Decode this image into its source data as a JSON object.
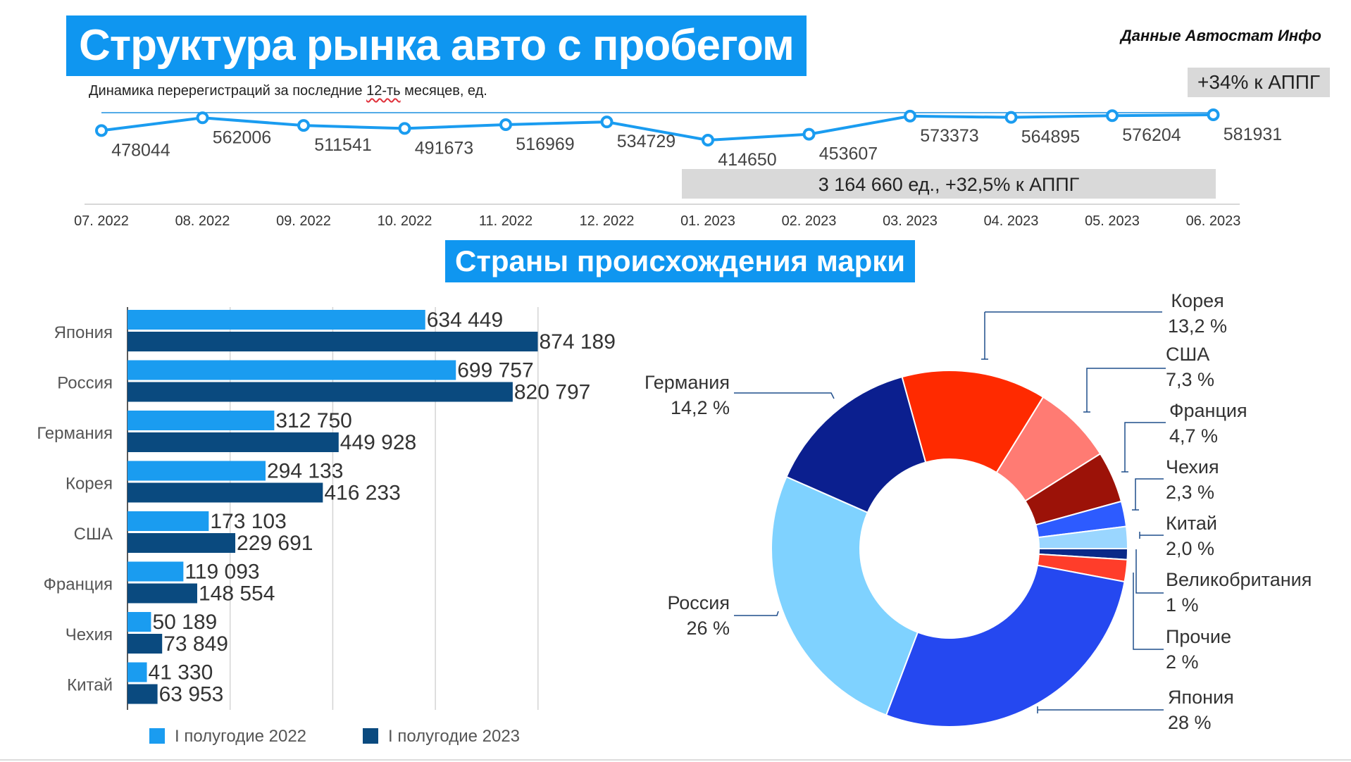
{
  "header": {
    "title": "Структура рынка авто с пробегом",
    "source": "Данные Автостат Инфо",
    "yoy_badge": "+34% к АППГ",
    "subtitle_pre": "Динамика перерегистраций за последние ",
    "subtitle_underlined": "12-ть",
    "subtitle_post": " месяцев, ед."
  },
  "section_title": "Страны происхождения марки",
  "colors": {
    "brand_blue": "#0f96f0",
    "bar_2022": "#1a9cf0",
    "bar_2023": "#0a4a7f",
    "badge_grey": "#d9d9d9"
  },
  "chart_data": [
    {
      "type": "line",
      "x": [
        "07. 2022",
        "08. 2022",
        "09. 2022",
        "10. 2022",
        "11. 2022",
        "12. 2022",
        "01. 2023",
        "02. 2023",
        "03. 2023",
        "04. 2023",
        "05. 2023",
        "06. 2023"
      ],
      "series": [
        {
          "values": [
            478044,
            562006,
            511541,
            491673,
            516969,
            534729,
            414650,
            453607,
            573373,
            564895,
            576204,
            581931
          ]
        }
      ],
      "annotation": "3 164 660 ед., +32,5% к АППГ",
      "grid": false
    },
    {
      "type": "bar",
      "orientation": "horizontal",
      "categories": [
        "Япония",
        "Россия",
        "Германия",
        "Корея",
        "США",
        "Франция",
        "Чехия",
        "Китай"
      ],
      "series": [
        {
          "name": "I полугодие 2022",
          "values": [
            634449,
            699757,
            312750,
            294133,
            173103,
            119093,
            50189,
            41330
          ],
          "labels": [
            "634 449",
            "699 757",
            "312 750",
            "294 133",
            "173 103",
            "119 093",
            "50 189",
            "41 330"
          ]
        },
        {
          "name": "I полугодие 2023",
          "values": [
            874189,
            820797,
            449928,
            416233,
            229691,
            148554,
            73849,
            63953
          ],
          "labels": [
            "874 189",
            "820 797",
            "449 928",
            "416 233",
            "229 691",
            "148 554",
            "73 849",
            "63 953"
          ]
        }
      ],
      "xlim": [
        0,
        875000
      ],
      "grid": true,
      "legend": "bottom"
    },
    {
      "type": "pie",
      "donut": true,
      "slices": [
        {
          "name": "Корея",
          "value": 13.2,
          "label": "13,2 %",
          "color": "#ff2a00"
        },
        {
          "name": "США",
          "value": 7.3,
          "label": "7,3 %",
          "color": "#ff7b73"
        },
        {
          "name": "Франция",
          "value": 4.7,
          "label": "4,7 %",
          "color": "#9c1208"
        },
        {
          "name": "Чехия",
          "value": 2.3,
          "label": "2,3 %",
          "color": "#2d5bff"
        },
        {
          "name": "Китай",
          "value": 2.0,
          "label": "2,0 %",
          "color": "#9ad6ff"
        },
        {
          "name": "Великобритания",
          "value": 1,
          "label": "1 %",
          "color": "#0a2a88"
        },
        {
          "name": "Прочие",
          "value": 2,
          "label": "2 %",
          "color": "#ff3d2a"
        },
        {
          "name": "Япония",
          "value": 28,
          "label": "28 %",
          "color": "#2548f0"
        },
        {
          "name": "Россия",
          "value": 26,
          "label": "26 %",
          "color": "#7fd2ff"
        },
        {
          "name": "Германия",
          "value": 14.2,
          "label": "14,2 %",
          "color": "#0b1f8f"
        }
      ]
    }
  ]
}
